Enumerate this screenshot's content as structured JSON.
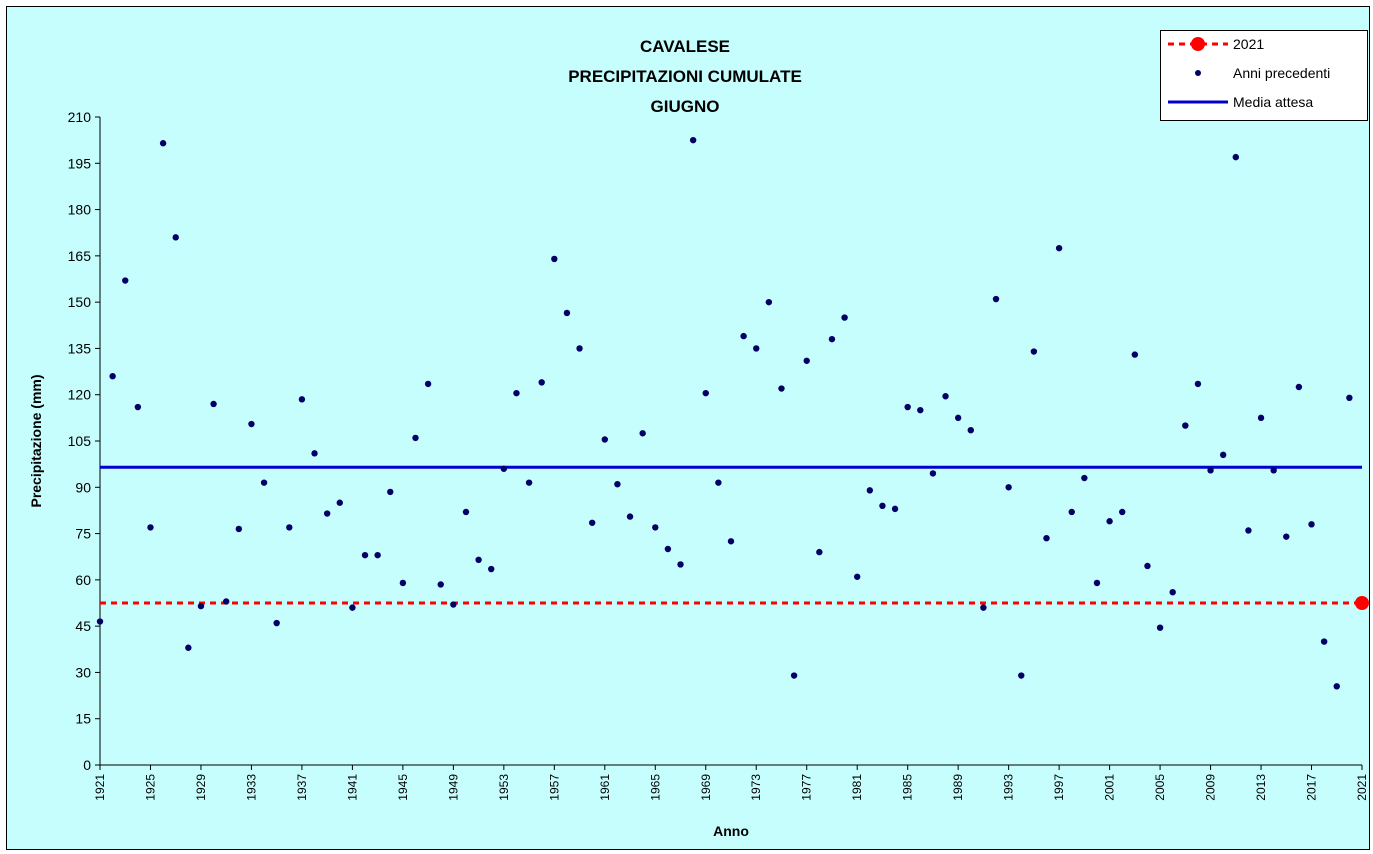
{
  "chart_data": {
    "type": "scatter",
    "title_lines": [
      "CAVALESE",
      "PRECIPITAZIONI CUMULATE",
      "GIUGNO"
    ],
    "xlabel": "Anno",
    "ylabel": "Precipitazione (mm)",
    "xlim": [
      1921,
      2021
    ],
    "ylim": [
      0,
      210
    ],
    "yticks": [
      0,
      15,
      30,
      45,
      60,
      75,
      90,
      105,
      120,
      135,
      150,
      165,
      180,
      195,
      210
    ],
    "xticks": [
      1921,
      1925,
      1929,
      1933,
      1937,
      1941,
      1945,
      1949,
      1953,
      1957,
      1961,
      1965,
      1969,
      1973,
      1977,
      1981,
      1985,
      1989,
      1993,
      1997,
      2001,
      2005,
      2009,
      2013,
      2017,
      2021
    ],
    "grid": false,
    "legend_position": "top-right",
    "series": [
      {
        "name": "2021",
        "kind": "point-with-dashed-line",
        "color": "#ff0000",
        "x": [
          2021
        ],
        "y": [
          52.5
        ]
      },
      {
        "name": "Anni precedenti",
        "kind": "scatter",
        "color": "#000066",
        "x": [
          1921,
          1922,
          1923,
          1924,
          1925,
          1926,
          1927,
          1928,
          1929,
          1930,
          1931,
          1932,
          1933,
          1934,
          1935,
          1936,
          1937,
          1938,
          1939,
          1940,
          1941,
          1942,
          1943,
          1944,
          1945,
          1946,
          1947,
          1948,
          1949,
          1950,
          1951,
          1952,
          1953,
          1954,
          1955,
          1956,
          1957,
          1958,
          1959,
          1960,
          1961,
          1962,
          1963,
          1964,
          1965,
          1966,
          1967,
          1968,
          1969,
          1970,
          1971,
          1972,
          1973,
          1974,
          1975,
          1976,
          1977,
          1978,
          1979,
          1980,
          1981,
          1982,
          1983,
          1984,
          1985,
          1986,
          1987,
          1988,
          1989,
          1990,
          1991,
          1992,
          1993,
          1994,
          1995,
          1996,
          1997,
          1998,
          1999,
          2000,
          2001,
          2002,
          2003,
          2004,
          2005,
          2006,
          2007,
          2008,
          2009,
          2010,
          2011,
          2012,
          2013,
          2014,
          2015,
          2016,
          2017,
          2018,
          2019,
          2020
        ],
        "y": [
          46.5,
          126,
          157,
          116,
          77,
          201.5,
          171,
          38,
          51.5,
          117,
          53,
          76.5,
          110.5,
          91.5,
          46,
          77,
          118.5,
          101,
          81.5,
          85,
          51,
          68,
          68,
          88.5,
          59,
          106,
          123.5,
          58.5,
          52,
          82,
          66.5,
          63.5,
          96,
          120.5,
          91.5,
          124,
          164,
          146.5,
          135,
          78.5,
          105.5,
          91,
          80.5,
          107.5,
          77,
          70,
          65,
          202.5,
          120.5,
          91.5,
          72.5,
          139,
          135,
          150,
          122,
          29,
          131,
          69,
          138,
          145,
          61,
          89,
          84,
          83,
          116,
          115,
          94.5,
          119.5,
          112.5,
          108.5,
          51,
          151,
          90,
          29,
          134,
          73.5,
          167.5,
          82,
          93,
          59,
          79,
          82,
          133,
          64.5,
          44.5,
          56,
          110,
          123.5,
          95.5,
          100.5,
          197,
          76,
          112.5,
          95.5,
          74,
          122.5,
          78,
          40,
          25.5,
          119
        ]
      },
      {
        "name": "Media attesa",
        "kind": "horizontal-line",
        "color": "#0000cc",
        "y": 96.5
      }
    ]
  }
}
